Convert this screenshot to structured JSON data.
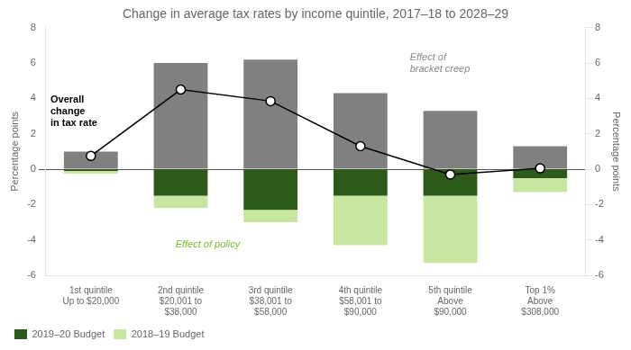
{
  "chart_data": {
    "type": "bar",
    "title": "Change in average tax rates by income quintile, 2017–18 to 2028–29",
    "ylabel": "Percentage points",
    "y2label": "Percentage points",
    "categories": [
      "1st quintile\nUp to $20,000",
      "2nd quintile\n$20,001 to\n$38,000",
      "3rd quintile\n$38,001 to\n$58,000",
      "4th quintile\n$58,001 to\n$90,000",
      "5th quintile\nAbove\n$90,000",
      "Top 1%\nAbove\n$308,000"
    ],
    "series": [
      {
        "color": "#808080",
        "values": [
          1.0,
          6.0,
          6.2,
          4.3,
          3.3,
          1.3
        ]
      },
      {
        "name": "2019–20 Budget",
        "color": "#2d5a1b",
        "values": [
          -0.1,
          -1.5,
          -2.3,
          -1.5,
          -1.5,
          -0.5
        ]
      },
      {
        "name": "2018–19 Budget",
        "color": "#c8e6a0",
        "values": [
          -0.15,
          -0.7,
          -0.7,
          -2.8,
          -3.8,
          -0.8
        ]
      },
      {
        "type": "line",
        "color": "#000000",
        "marker": "circle",
        "values": [
          0.75,
          4.5,
          3.85,
          1.3,
          -0.3,
          0.05
        ]
      }
    ],
    "stacked": true,
    "ylim": [
      -6,
      8
    ],
    "yticks": [
      -6,
      -4,
      -2,
      0,
      2,
      4,
      6,
      8
    ],
    "y2lim": [
      -6,
      8
    ],
    "y2ticks": [
      -6,
      -4,
      -2,
      0,
      2,
      4,
      6,
      8
    ],
    "grid": false,
    "legend": "lower left",
    "annotations": [
      {
        "text": "Effect of\nbracket creep",
        "color": "#888888"
      },
      {
        "text": "Effect of policy",
        "color": "#7ab830"
      },
      {
        "text": "Overall\nchange\nin tax rate",
        "color": "#000000"
      }
    ]
  }
}
